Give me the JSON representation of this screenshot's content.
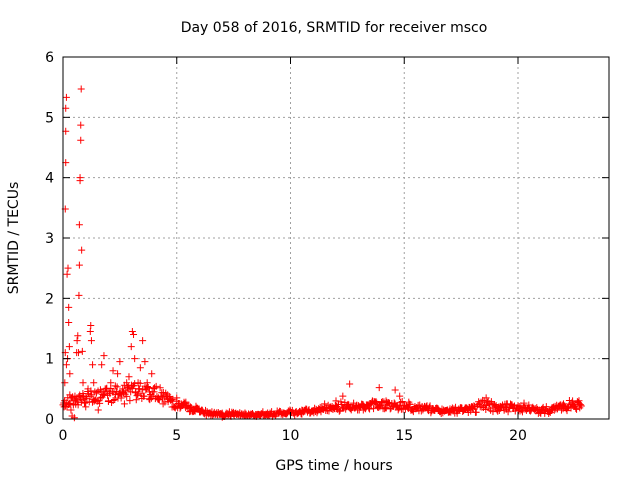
{
  "chart_data": {
    "type": "scatter",
    "title": "Day 058 of 2016, SRMTID for receiver msco",
    "xlabel": "GPS time / hours",
    "ylabel": "SRMTID / TECUs",
    "xlim": [
      0,
      24
    ],
    "ylim": [
      0,
      6
    ],
    "x_ticks": [
      0,
      5,
      10,
      15,
      20
    ],
    "y_ticks": [
      0,
      1,
      2,
      3,
      4,
      5,
      6
    ],
    "x_tick_labels": [
      "0",
      "5",
      "10",
      "15",
      "20"
    ],
    "y_tick_labels": [
      "0",
      "1",
      "2",
      "3",
      "4",
      "5",
      "6"
    ],
    "grid": true,
    "marker": "plus",
    "color": "#ff0000",
    "series": [
      {
        "name": "SRMTID",
        "points": [
          [
            0.05,
            0.2
          ],
          [
            0.08,
            0.6
          ],
          [
            0.1,
            1.1
          ],
          [
            0.1,
            3.48
          ],
          [
            0.12,
            4.25
          ],
          [
            0.12,
            4.77
          ],
          [
            0.12,
            5.15
          ],
          [
            0.15,
            5.33
          ],
          [
            0.15,
            0.9
          ],
          [
            0.18,
            2.4
          ],
          [
            0.2,
            1.0
          ],
          [
            0.22,
            2.5
          ],
          [
            0.25,
            1.85
          ],
          [
            0.25,
            1.6
          ],
          [
            0.28,
            1.2
          ],
          [
            0.3,
            0.75
          ],
          [
            0.3,
            0.4
          ],
          [
            0.35,
            0.15
          ],
          [
            0.4,
            0.05
          ],
          [
            0.5,
            0.02
          ],
          [
            0.55,
            0.3
          ],
          [
            0.6,
            1.1
          ],
          [
            0.62,
            1.3
          ],
          [
            0.65,
            1.38
          ],
          [
            0.68,
            1.1
          ],
          [
            0.7,
            2.05
          ],
          [
            0.72,
            2.55
          ],
          [
            0.72,
            3.22
          ],
          [
            0.75,
            3.95
          ],
          [
            0.75,
            4.0
          ],
          [
            0.78,
            4.87
          ],
          [
            0.78,
            4.62
          ],
          [
            0.8,
            5.47
          ],
          [
            0.82,
            2.8
          ],
          [
            0.85,
            1.12
          ],
          [
            0.88,
            0.6
          ],
          [
            0.9,
            0.35
          ],
          [
            1.0,
            0.2
          ],
          [
            1.1,
            0.5
          ],
          [
            1.2,
            1.45
          ],
          [
            1.22,
            1.55
          ],
          [
            1.25,
            1.3
          ],
          [
            1.3,
            0.9
          ],
          [
            1.35,
            0.6
          ],
          [
            1.4,
            0.45
          ],
          [
            1.5,
            0.3
          ],
          [
            1.55,
            0.15
          ],
          [
            1.65,
            0.35
          ],
          [
            1.7,
            0.9
          ],
          [
            1.8,
            1.05
          ],
          [
            1.9,
            0.5
          ],
          [
            2.0,
            0.3
          ],
          [
            2.1,
            0.6
          ],
          [
            2.2,
            0.8
          ],
          [
            2.3,
            0.55
          ],
          [
            2.4,
            0.75
          ],
          [
            2.5,
            0.95
          ],
          [
            2.6,
            0.45
          ],
          [
            2.7,
            0.25
          ],
          [
            2.8,
            0.6
          ],
          [
            2.9,
            0.7
          ],
          [
            3.0,
            1.2
          ],
          [
            3.05,
            1.45
          ],
          [
            3.1,
            1.4
          ],
          [
            3.15,
            1.0
          ],
          [
            3.2,
            0.45
          ],
          [
            3.3,
            0.6
          ],
          [
            3.4,
            0.85
          ],
          [
            3.5,
            1.3
          ],
          [
            3.6,
            0.95
          ],
          [
            3.7,
            0.6
          ],
          [
            3.8,
            0.45
          ],
          [
            3.9,
            0.75
          ],
          [
            4.0,
            0.45
          ],
          [
            4.2,
            0.35
          ],
          [
            4.4,
            0.25
          ],
          [
            4.6,
            0.4
          ],
          [
            4.8,
            0.3
          ],
          [
            5.0,
            0.35
          ],
          [
            5.2,
            0.25
          ],
          [
            5.4,
            0.28
          ],
          [
            5.6,
            0.2
          ],
          [
            5.8,
            0.15
          ],
          [
            6.0,
            0.12
          ],
          [
            6.5,
            0.05
          ],
          [
            7.0,
            0.03
          ],
          [
            7.5,
            0.08
          ],
          [
            8.0,
            0.1
          ],
          [
            8.5,
            0.07
          ],
          [
            9.0,
            0.05
          ],
          [
            9.5,
            0.1
          ],
          [
            10.0,
            0.12
          ],
          [
            10.5,
            0.08
          ],
          [
            11.0,
            0.14
          ],
          [
            11.5,
            0.25
          ],
          [
            12.0,
            0.3
          ],
          [
            12.3,
            0.38
          ],
          [
            12.6,
            0.58
          ],
          [
            12.9,
            0.22
          ],
          [
            13.2,
            0.15
          ],
          [
            13.6,
            0.3
          ],
          [
            13.9,
            0.52
          ],
          [
            14.2,
            0.3
          ],
          [
            14.6,
            0.48
          ],
          [
            14.8,
            0.38
          ],
          [
            15.2,
            0.28
          ],
          [
            15.6,
            0.18
          ],
          [
            16.0,
            0.22
          ],
          [
            16.5,
            0.15
          ],
          [
            17.0,
            0.12
          ],
          [
            17.5,
            0.18
          ],
          [
            18.0,
            0.2
          ],
          [
            18.6,
            0.35
          ],
          [
            19.0,
            0.18
          ],
          [
            19.5,
            0.25
          ],
          [
            20.0,
            0.22
          ],
          [
            20.5,
            0.18
          ],
          [
            21.0,
            0.12
          ],
          [
            21.5,
            0.15
          ],
          [
            22.0,
            0.25
          ],
          [
            22.4,
            0.3
          ],
          [
            22.7,
            0.25
          ]
        ],
        "band_profile": [
          [
            0.0,
            0.25
          ],
          [
            1.0,
            0.35
          ],
          [
            2.0,
            0.4
          ],
          [
            3.0,
            0.45
          ],
          [
            4.0,
            0.42
          ],
          [
            4.5,
            0.35
          ],
          [
            5.0,
            0.25
          ],
          [
            5.5,
            0.18
          ],
          [
            6.0,
            0.13
          ],
          [
            7.0,
            0.08
          ],
          [
            8.0,
            0.07
          ],
          [
            9.0,
            0.08
          ],
          [
            10.0,
            0.11
          ],
          [
            11.0,
            0.14
          ],
          [
            12.0,
            0.2
          ],
          [
            13.0,
            0.2
          ],
          [
            14.0,
            0.25
          ],
          [
            15.0,
            0.22
          ],
          [
            16.0,
            0.16
          ],
          [
            17.0,
            0.13
          ],
          [
            18.0,
            0.16
          ],
          [
            18.6,
            0.25
          ],
          [
            19.0,
            0.18
          ],
          [
            20.0,
            0.2
          ],
          [
            21.0,
            0.14
          ],
          [
            22.0,
            0.2
          ],
          [
            22.8,
            0.28
          ]
        ]
      }
    ]
  }
}
